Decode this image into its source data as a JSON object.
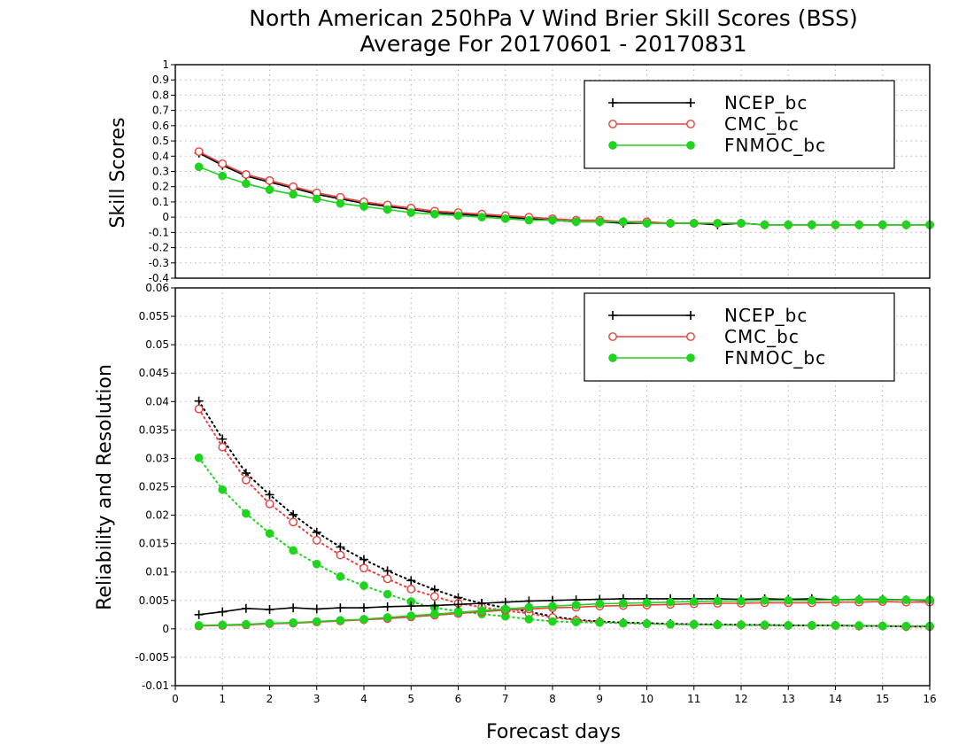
{
  "title_line1": "North American 250hPa V Wind Brier Skill Scores (BSS)",
  "title_line2": "Average For 20170601 - 20170831",
  "xlabel": "Forecast days",
  "legend": [
    {
      "name": "NCEP_bc",
      "color": "#000000",
      "marker": "plus"
    },
    {
      "name": "CMC_bc",
      "color": "#e8403c",
      "marker": "open-circle"
    },
    {
      "name": "FNMOC_bc",
      "color": "#1ed41e",
      "marker": "filled-circle"
    }
  ],
  "chart_data": [
    {
      "type": "line",
      "ylabel": "Skill Scores",
      "xlim": [
        0,
        16
      ],
      "ylim": [
        -0.4,
        1
      ],
      "xticks": [
        "0",
        "1",
        "2",
        "3",
        "4",
        "5",
        "6",
        "7",
        "8",
        "9",
        "10",
        "11",
        "12",
        "13",
        "14",
        "15",
        "16"
      ],
      "yticks": [
        "-0.4",
        "-0.3",
        "-0.2",
        "-0.1",
        "0",
        "0.1",
        "0.2",
        "0.3",
        "0.4",
        "0.5",
        "0.6",
        "0.7",
        "0.8",
        "0.9",
        "1"
      ],
      "grid": true,
      "legend_position": "top-right",
      "x": [
        0.5,
        1,
        1.5,
        2,
        2.5,
        3,
        3.5,
        4,
        4.5,
        5,
        5.5,
        6,
        6.5,
        7,
        7.5,
        8,
        8.5,
        9,
        9.5,
        10,
        10.5,
        11,
        11.5,
        12,
        12.5,
        13,
        13.5,
        14,
        14.5,
        15,
        15.5,
        16
      ],
      "series": [
        {
          "name": "NCEP_bc",
          "style": "solid",
          "color": "#000000",
          "marker": "plus",
          "values": [
            0.42,
            0.34,
            0.27,
            0.23,
            0.19,
            0.15,
            0.12,
            0.09,
            0.07,
            0.05,
            0.03,
            0.02,
            0.01,
            0.0,
            -0.01,
            -0.02,
            -0.03,
            -0.03,
            -0.04,
            -0.04,
            -0.04,
            -0.04,
            -0.05,
            -0.04,
            -0.05,
            -0.05,
            -0.05,
            -0.05,
            -0.05,
            -0.05,
            -0.05,
            -0.05
          ]
        },
        {
          "name": "CMC_bc",
          "style": "solid",
          "color": "#e8403c",
          "marker": "open-circle",
          "values": [
            0.43,
            0.35,
            0.28,
            0.24,
            0.2,
            0.16,
            0.13,
            0.1,
            0.08,
            0.06,
            0.04,
            0.03,
            0.02,
            0.01,
            0.0,
            -0.01,
            -0.02,
            -0.02,
            -0.03,
            -0.03,
            -0.04,
            -0.04,
            -0.04,
            -0.04,
            -0.05,
            -0.05,
            -0.05,
            -0.05,
            -0.05,
            -0.05,
            -0.05,
            -0.05
          ]
        },
        {
          "name": "FNMOC_bc",
          "style": "solid",
          "color": "#1ed41e",
          "marker": "filled-circle",
          "values": [
            0.33,
            0.27,
            0.22,
            0.18,
            0.15,
            0.12,
            0.09,
            0.07,
            0.05,
            0.03,
            0.02,
            0.01,
            0.0,
            -0.01,
            -0.02,
            -0.02,
            -0.03,
            -0.03,
            -0.03,
            -0.04,
            -0.04,
            -0.04,
            -0.04,
            -0.04,
            -0.05,
            -0.05,
            -0.05,
            -0.05,
            -0.05,
            -0.05,
            -0.05,
            -0.05
          ]
        }
      ]
    },
    {
      "type": "line",
      "ylabel": "Reliability and Resolution",
      "xlim": [
        0,
        16
      ],
      "ylim": [
        -0.01,
        0.06
      ],
      "xticks": [
        "0",
        "1",
        "2",
        "3",
        "4",
        "5",
        "6",
        "7",
        "8",
        "9",
        "10",
        "11",
        "12",
        "13",
        "14",
        "15",
        "16"
      ],
      "yticks": [
        "-0.01",
        "-0.005",
        "0",
        "0.005",
        "0.01",
        "0.015",
        "0.02",
        "0.025",
        "0.03",
        "0.035",
        "0.04",
        "0.045",
        "0.05",
        "0.055",
        "0.06"
      ],
      "grid": true,
      "legend_position": "top-right",
      "x": [
        0.5,
        1,
        1.5,
        2,
        2.5,
        3,
        3.5,
        4,
        4.5,
        5,
        5.5,
        6,
        6.5,
        7,
        7.5,
        8,
        8.5,
        9,
        9.5,
        10,
        10.5,
        11,
        11.5,
        12,
        12.5,
        13,
        13.5,
        14,
        14.5,
        15,
        15.5,
        16
      ],
      "series": [
        {
          "name": "NCEP_bc",
          "style": "dotted",
          "color": "#000000",
          "marker": "plus",
          "values": [
            0.0401,
            0.0334,
            0.0274,
            0.0236,
            0.0201,
            0.017,
            0.0144,
            0.0122,
            0.0102,
            0.0085,
            0.0069,
            0.0055,
            0.0045,
            0.0037,
            0.003,
            0.0022,
            0.0016,
            0.0013,
            0.0011,
            0.001,
            0.0009,
            0.0008,
            0.0008,
            0.0007,
            0.0007,
            0.0006,
            0.0006,
            0.0006,
            0.0005,
            0.0005,
            0.0004,
            0.0004
          ]
        },
        {
          "name": "CMC_bc",
          "style": "dotted",
          "color": "#e8403c",
          "marker": "open-circle",
          "values": [
            0.0387,
            0.032,
            0.0262,
            0.022,
            0.0188,
            0.0156,
            0.013,
            0.0107,
            0.0088,
            0.007,
            0.0057,
            0.0045,
            0.0038,
            0.0032,
            0.0027,
            0.002,
            0.0015,
            0.0012,
            0.001,
            0.0009,
            0.0008,
            0.0008,
            0.0007,
            0.0007,
            0.0006,
            0.0006,
            0.0006,
            0.0006,
            0.0005,
            0.0005,
            0.0004,
            0.0004
          ]
        },
        {
          "name": "FNMOC_bc",
          "style": "dotted",
          "color": "#1ed41e",
          "marker": "filled-circle",
          "values": [
            0.0301,
            0.0245,
            0.0203,
            0.0168,
            0.0138,
            0.0114,
            0.0092,
            0.0076,
            0.0061,
            0.0048,
            0.0037,
            0.0031,
            0.0026,
            0.0022,
            0.0017,
            0.0013,
            0.0012,
            0.0011,
            0.001,
            0.0009,
            0.0008,
            0.0008,
            0.0007,
            0.0007,
            0.0007,
            0.0006,
            0.0006,
            0.0006,
            0.0006,
            0.0005,
            0.0005,
            0.0005
          ]
        },
        {
          "name": "NCEP_bc",
          "style": "solid",
          "color": "#000000",
          "marker": "plus",
          "values": [
            0.0025,
            0.003,
            0.0036,
            0.0034,
            0.0037,
            0.0035,
            0.0037,
            0.0037,
            0.0039,
            0.004,
            0.0041,
            0.0043,
            0.0045,
            0.0047,
            0.0049,
            0.005,
            0.0051,
            0.0052,
            0.0053,
            0.0053,
            0.0053,
            0.0053,
            0.0053,
            0.0052,
            0.0053,
            0.0052,
            0.0053,
            0.0051,
            0.0052,
            0.0052,
            0.0051,
            0.005
          ]
        },
        {
          "name": "CMC_bc",
          "style": "solid",
          "color": "#e8403c",
          "marker": "open-circle",
          "values": [
            0.0005,
            0.0006,
            0.0007,
            0.0009,
            0.001,
            0.0012,
            0.0014,
            0.0016,
            0.0018,
            0.0021,
            0.0024,
            0.0027,
            0.003,
            0.0033,
            0.0035,
            0.0037,
            0.0038,
            0.004,
            0.0041,
            0.0042,
            0.0043,
            0.0044,
            0.0045,
            0.0045,
            0.0046,
            0.0046,
            0.0046,
            0.0047,
            0.0047,
            0.0048,
            0.0047,
            0.0047
          ]
        },
        {
          "name": "FNMOC_bc",
          "style": "solid",
          "color": "#1ed41e",
          "marker": "filled-circle",
          "values": [
            0.0006,
            0.0007,
            0.0008,
            0.001,
            0.0011,
            0.0013,
            0.0015,
            0.0017,
            0.002,
            0.0023,
            0.0026,
            0.0029,
            0.0032,
            0.0035,
            0.0038,
            0.004,
            0.0042,
            0.0044,
            0.0045,
            0.0046,
            0.0047,
            0.0048,
            0.0049,
            0.0049,
            0.005,
            0.005,
            0.005,
            0.0051,
            0.0051,
            0.0051,
            0.0051,
            0.0051
          ]
        }
      ]
    }
  ]
}
